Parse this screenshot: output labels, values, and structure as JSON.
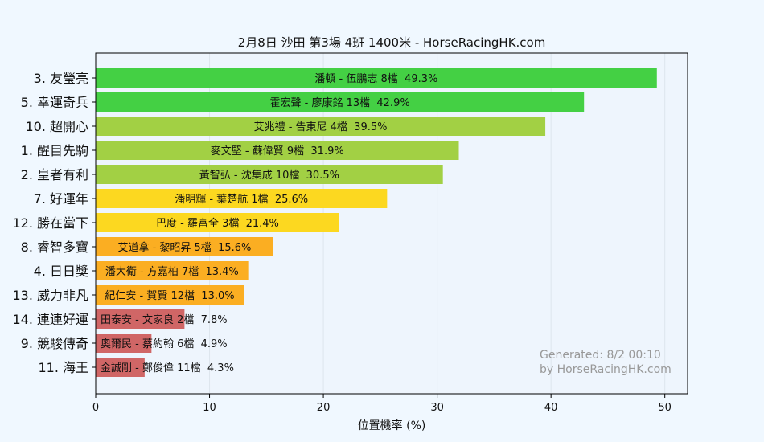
{
  "chart_data": {
    "type": "bar",
    "orientation": "horizontal",
    "title": "2月8日  沙田  第3場  4班  1400米 - HorseRacingHK.com",
    "xlabel": "位置機率 (%)",
    "ylabel": "",
    "xlim": [
      0,
      52
    ],
    "xticks": [
      0,
      10,
      20,
      30,
      40,
      50
    ],
    "grid": true,
    "annotation": {
      "line1": "Generated: 8/2 00:10",
      "line2": "by HorseRacingHK.com"
    },
    "bars": [
      {
        "horse": "3. 友瑩亮",
        "label": "潘頓 - 伍鵬志 8檔",
        "value": 49.3,
        "value_label": "49.3%",
        "color": "#44d044"
      },
      {
        "horse": "5. 幸運奇兵",
        "label": "霍宏聲 - 廖康銘 13檔",
        "value": 42.9,
        "value_label": "42.9%",
        "color": "#44d044"
      },
      {
        "horse": "10. 超開心",
        "label": "艾兆禮 - 告東尼 4檔",
        "value": 39.5,
        "value_label": "39.5%",
        "color": "#a2d044"
      },
      {
        "horse": "1. 醒目先駒",
        "label": "麥文堅 - 蘇偉賢 9檔",
        "value": 31.9,
        "value_label": "31.9%",
        "color": "#a2d044"
      },
      {
        "horse": "2. 皇者有利",
        "label": "黃智弘 - 沈集成 10檔",
        "value": 30.5,
        "value_label": "30.5%",
        "color": "#a2d044"
      },
      {
        "horse": "7. 好運年",
        "label": "潘明輝 - 葉楚航 1檔",
        "value": 25.6,
        "value_label": "25.6%",
        "color": "#fcd820"
      },
      {
        "horse": "12. 勝在當下",
        "label": "巴度 - 羅富全 3檔",
        "value": 21.4,
        "value_label": "21.4%",
        "color": "#fcd820"
      },
      {
        "horse": "8. 睿智多寶",
        "label": "艾道拿 - 黎昭昇 5檔",
        "value": 15.6,
        "value_label": "15.6%",
        "color": "#fbae22"
      },
      {
        "horse": "4. 日日獎",
        "label": "潘大衛 - 方嘉柏 7檔",
        "value": 13.4,
        "value_label": "13.4%",
        "color": "#fbae22"
      },
      {
        "horse": "13. 威力非凡",
        "label": "紀仁安 - 賀賢 12檔",
        "value": 13.0,
        "value_label": "13.0%",
        "color": "#fbae22"
      },
      {
        "horse": "14. 連連好運",
        "label": "田泰安 - 文家良 2檔",
        "value": 7.8,
        "value_label": "7.8%",
        "color": "#d06666"
      },
      {
        "horse": "9. 競駿傳奇",
        "label": "奧爾民 - 蔡約翰 6檔",
        "value": 4.9,
        "value_label": "4.9%",
        "color": "#d06666"
      },
      {
        "horse": "11. 海王",
        "label": "金誠剛 - 鄭俊偉 11檔",
        "value": 4.3,
        "value_label": "4.3%",
        "color": "#d06666"
      }
    ]
  }
}
